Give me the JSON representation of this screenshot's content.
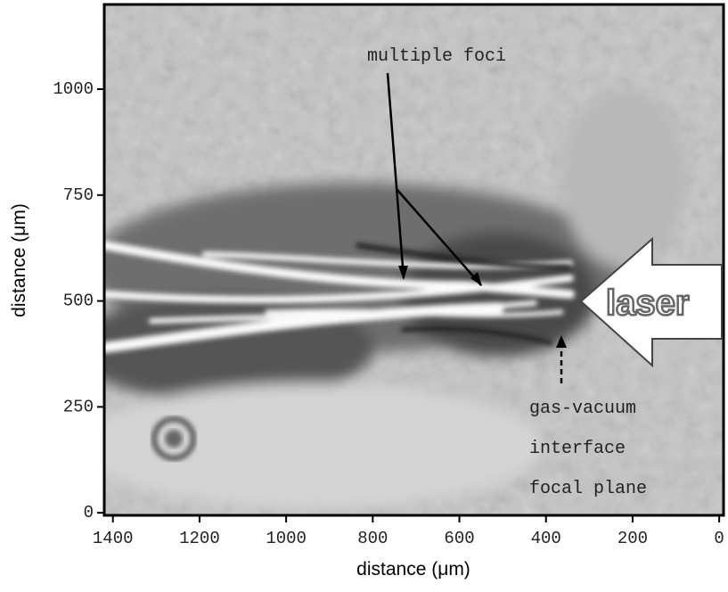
{
  "chart_data": {
    "type": "image",
    "xlabel": "distance (μm)",
    "ylabel": "distance (μm)",
    "xlim": [
      1420,
      -10
    ],
    "xticks": [
      1400,
      1200,
      1000,
      800,
      600,
      400,
      200,
      0
    ],
    "ylim": [
      -6,
      1200
    ],
    "yticks": [
      0,
      250,
      500,
      750,
      1000
    ],
    "annotations": {
      "foci": "multiple foci",
      "laser": "laser",
      "interface": [
        "gas-vacuum",
        "interface",
        "focal plane"
      ]
    }
  }
}
